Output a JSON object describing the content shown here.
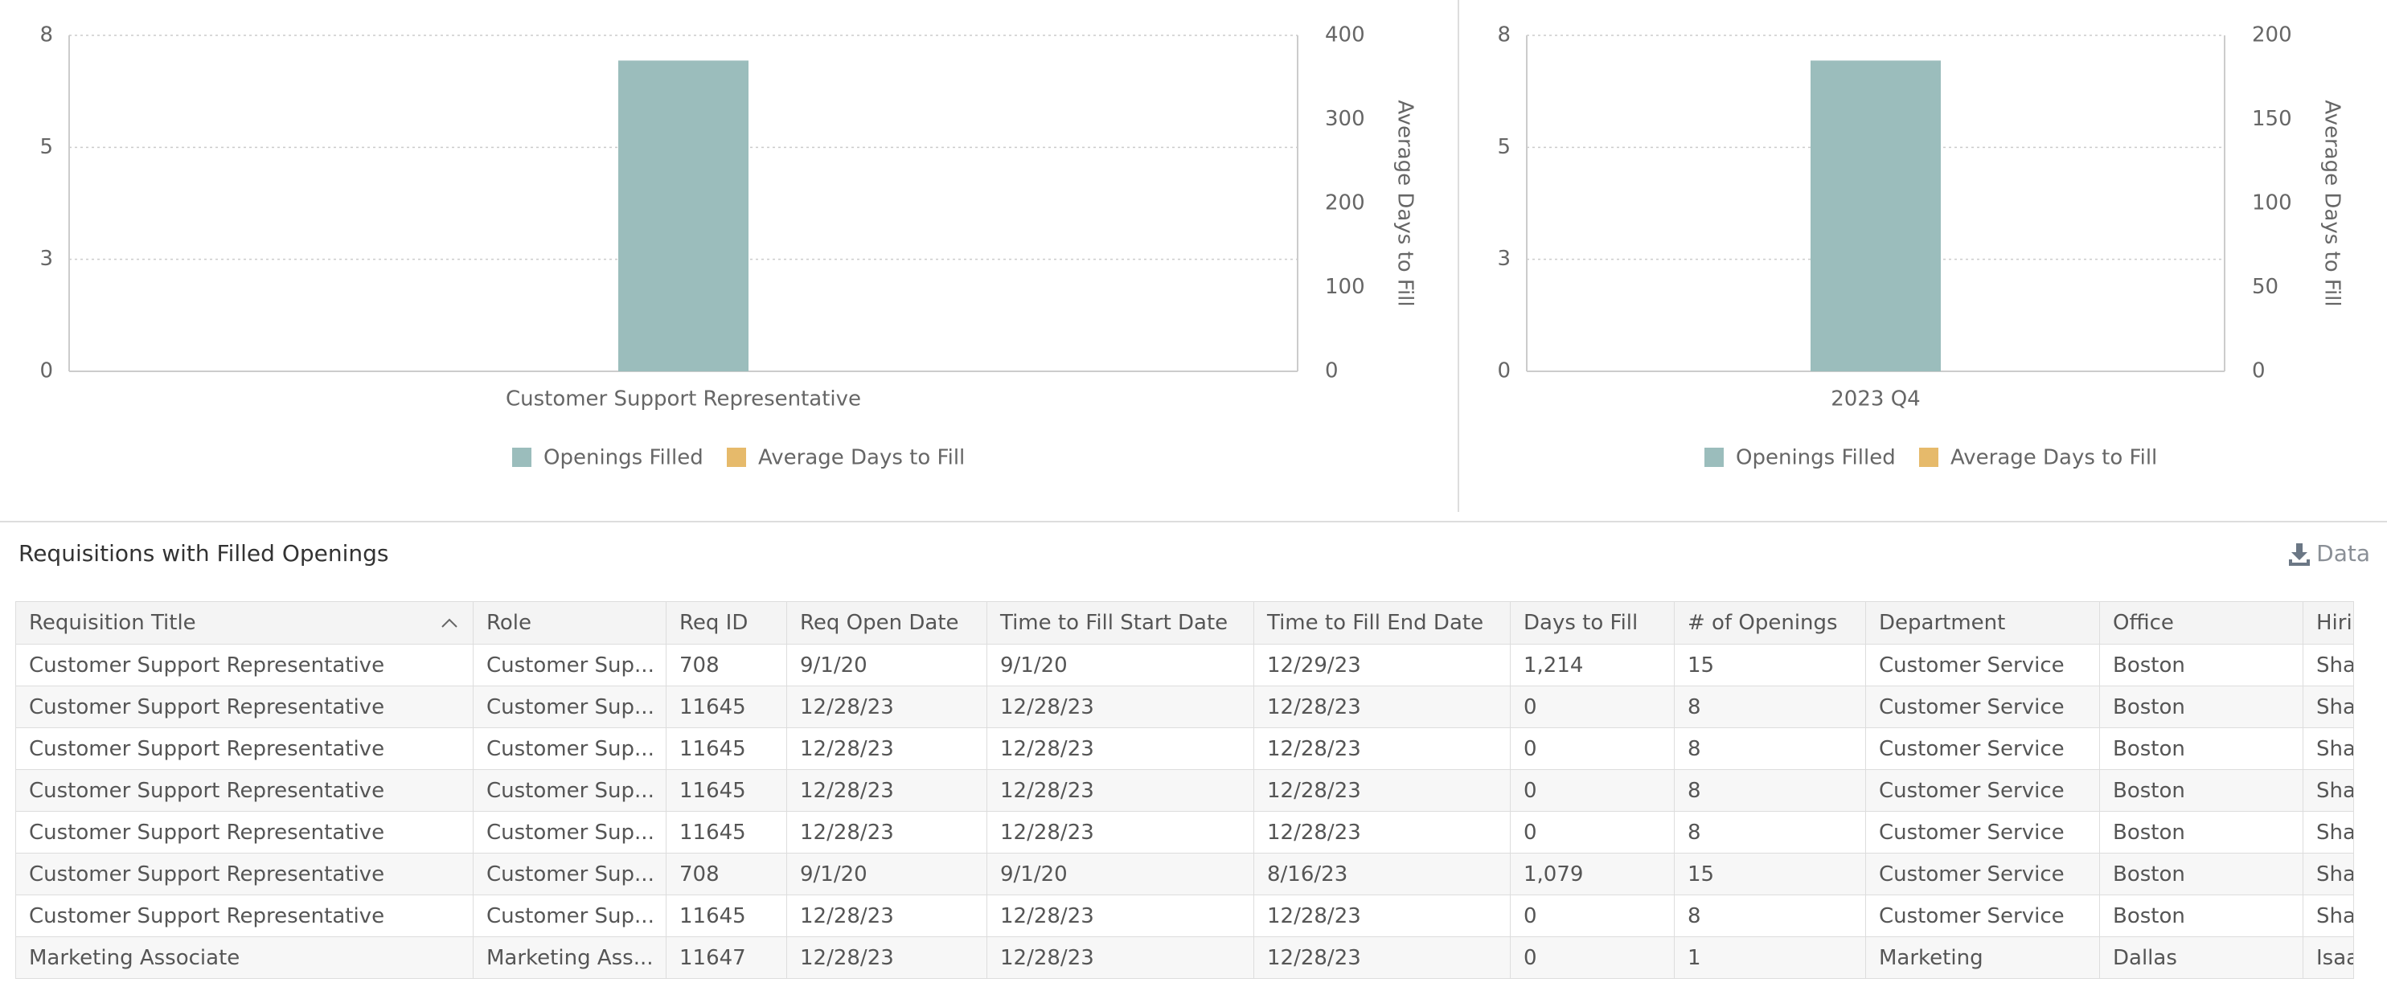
{
  "chart_data": [
    {
      "type": "bar",
      "categories": [
        "Customer Support Representative"
      ],
      "series": [
        {
          "name": "Openings Filled",
          "color": "#9bbdbc",
          "values": [
            7.4
          ]
        },
        {
          "name": "Average Days to Fill",
          "color": "#e6ba6b",
          "axis": "y2",
          "values": [
            null
          ]
        }
      ],
      "ylim": [
        0,
        8
      ],
      "yticks": [
        0,
        {
          "value": 2.667,
          "label": "3"
        },
        {
          "value": 5.333,
          "label": "5"
        },
        8
      ],
      "y2lim": [
        0,
        400
      ],
      "y2ticks": [
        0,
        100,
        200,
        300,
        400
      ],
      "y2label": "Average Days to Fill",
      "grid": true
    },
    {
      "type": "bar",
      "categories": [
        "2023 Q4"
      ],
      "series": [
        {
          "name": "Openings Filled",
          "color": "#9bbdbc",
          "values": [
            7.4
          ]
        },
        {
          "name": "Average Days to Fill",
          "color": "#e6ba6b",
          "axis": "y2",
          "values": [
            null
          ]
        }
      ],
      "ylim": [
        0,
        8
      ],
      "yticks": [
        0,
        {
          "value": 2.667,
          "label": "3"
        },
        {
          "value": 5.333,
          "label": "5"
        },
        8
      ],
      "y2lim": [
        0,
        200
      ],
      "y2ticks": [
        0,
        50,
        100,
        150,
        200
      ],
      "y2label": "Average Days to Fill",
      "grid": true
    }
  ],
  "table": {
    "title": "Requisitions with Filled Openings",
    "download": "Data",
    "columns": [
      "Requisition Title",
      "Role",
      "Req ID",
      "Req Open Date",
      "Time to Fill Start Date",
      "Time to Fill End Date",
      "Days to Fill",
      "# of Openings",
      "Department",
      "Office",
      "Hiri"
    ],
    "rows": [
      [
        "Customer Support Representative",
        "Customer Sup...",
        "708",
        "9/1/20",
        "9/1/20",
        "12/29/23",
        "1,214",
        "15",
        "Customer Service",
        "Boston",
        "Sha"
      ],
      [
        "Customer Support Representative",
        "Customer Sup...",
        "11645",
        "12/28/23",
        "12/28/23",
        "12/28/23",
        "0",
        "8",
        "Customer Service",
        "Boston",
        "Sha"
      ],
      [
        "Customer Support Representative",
        "Customer Sup...",
        "11645",
        "12/28/23",
        "12/28/23",
        "12/28/23",
        "0",
        "8",
        "Customer Service",
        "Boston",
        "Sha"
      ],
      [
        "Customer Support Representative",
        "Customer Sup...",
        "11645",
        "12/28/23",
        "12/28/23",
        "12/28/23",
        "0",
        "8",
        "Customer Service",
        "Boston",
        "Sha"
      ],
      [
        "Customer Support Representative",
        "Customer Sup...",
        "11645",
        "12/28/23",
        "12/28/23",
        "12/28/23",
        "0",
        "8",
        "Customer Service",
        "Boston",
        "Sha"
      ],
      [
        "Customer Support Representative",
        "Customer Sup...",
        "708",
        "9/1/20",
        "9/1/20",
        "8/16/23",
        "1,079",
        "15",
        "Customer Service",
        "Boston",
        "Sha"
      ],
      [
        "Customer Support Representative",
        "Customer Sup...",
        "11645",
        "12/28/23",
        "12/28/23",
        "12/28/23",
        "0",
        "8",
        "Customer Service",
        "Boston",
        "Sha"
      ],
      [
        "Marketing Associate",
        "Marketing Ass...",
        "11647",
        "12/28/23",
        "12/28/23",
        "12/28/23",
        "0",
        "1",
        "Marketing",
        "Dallas",
        "Isaa"
      ]
    ]
  }
}
